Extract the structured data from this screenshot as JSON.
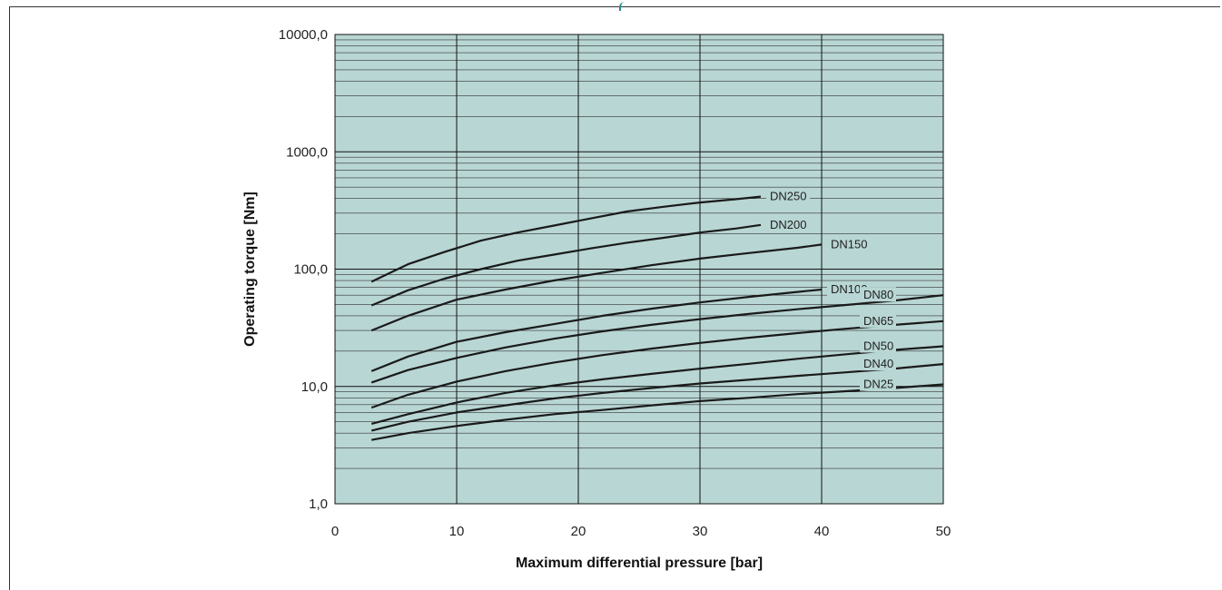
{
  "chart_data": {
    "type": "line",
    "title": "",
    "xlabel": "Maximum differential pressure [bar]",
    "ylabel": "Operating torque [Nm]",
    "xlim": [
      0,
      50
    ],
    "ylim": [
      1,
      10000
    ],
    "y_scale": "log",
    "grid": true,
    "legend": "inline labels at end of curves",
    "x_ticks": [
      "0",
      "10",
      "20",
      "30",
      "40",
      "50"
    ],
    "y_ticks": [
      "1,0",
      "10,0",
      "100,0",
      "1000,0",
      "10000,0"
    ],
    "colors": {
      "plot_background": "#b8d6d4",
      "line": "#1a1a1a",
      "grid": "#222222"
    },
    "series": [
      {
        "name": "DN250",
        "x": [
          3,
          6,
          9,
          12,
          15,
          18,
          21,
          24,
          27,
          30,
          33,
          35
        ],
        "y": [
          78,
          110,
          140,
          175,
          205,
          235,
          270,
          310,
          340,
          370,
          395,
          415
        ]
      },
      {
        "name": "DN200",
        "x": [
          3,
          6,
          9,
          12,
          15,
          18,
          21,
          24,
          27,
          30,
          33,
          35
        ],
        "y": [
          49,
          66,
          83,
          100,
          118,
          133,
          150,
          168,
          185,
          205,
          222,
          238
        ]
      },
      {
        "name": "DN150",
        "x": [
          3,
          6,
          10,
          14,
          18,
          22,
          26,
          30,
          34,
          38,
          40
        ],
        "y": [
          30,
          40,
          55,
          67,
          80,
          93,
          108,
          123,
          137,
          152,
          162
        ]
      },
      {
        "name": "DN100",
        "x": [
          3,
          6,
          10,
          14,
          18,
          22,
          26,
          30,
          34,
          38,
          40
        ],
        "y": [
          13.5,
          18,
          24,
          29,
          34,
          40,
          46,
          52,
          58,
          64,
          67
        ]
      },
      {
        "name": "DN80",
        "x": [
          3,
          6,
          10,
          14,
          18,
          22,
          26,
          30,
          34,
          38,
          42,
          46,
          50
        ],
        "y": [
          10.8,
          13.8,
          17.5,
          21.5,
          25.5,
          29.5,
          33.5,
          37.5,
          41.5,
          45.5,
          49.5,
          54,
          60
        ]
      },
      {
        "name": "DN65",
        "x": [
          3,
          6,
          10,
          14,
          18,
          22,
          26,
          30,
          34,
          38,
          42,
          46,
          50
        ],
        "y": [
          6.6,
          8.5,
          11,
          13.5,
          16,
          18.5,
          21,
          23.5,
          26,
          28.5,
          31,
          33.5,
          36
        ]
      },
      {
        "name": "DN50",
        "x": [
          3,
          6,
          10,
          14,
          18,
          22,
          26,
          30,
          34,
          38,
          42,
          46,
          50
        ],
        "y": [
          4.8,
          5.8,
          7.3,
          8.8,
          10.2,
          11.5,
          12.8,
          14.2,
          15.6,
          17.2,
          18.8,
          20.5,
          22
        ]
      },
      {
        "name": "DN40",
        "x": [
          3,
          6,
          10,
          14,
          18,
          22,
          26,
          30,
          34,
          38,
          42,
          46,
          50
        ],
        "y": [
          4.2,
          5,
          6,
          6.9,
          7.9,
          8.8,
          9.7,
          10.6,
          11.4,
          12.3,
          13.2,
          14.2,
          15.5
        ]
      },
      {
        "name": "DN25",
        "x": [
          3,
          6,
          10,
          14,
          18,
          22,
          26,
          30,
          34,
          38,
          42,
          46,
          50
        ],
        "y": [
          3.5,
          4,
          4.6,
          5.2,
          5.8,
          6.3,
          6.9,
          7.5,
          8,
          8.6,
          9.1,
          9.7,
          10.4
        ]
      }
    ]
  }
}
